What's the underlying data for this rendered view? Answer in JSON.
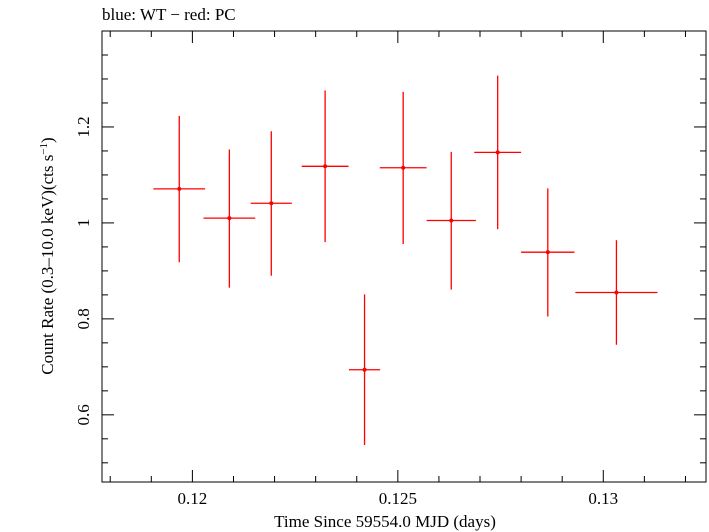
{
  "chart_data": {
    "type": "scatter",
    "title": "blue: WT − red: PC",
    "xlabel": "Time Since 59554.0 MJD (days)",
    "ylabel_main": "Count Rate (0.3–10.0 keV)(cts s",
    "ylabel_sup": "−1",
    "ylabel_tail": ")",
    "xlim": [
      0.1178,
      0.1325
    ],
    "ylim": [
      0.46,
      1.4
    ],
    "x_ticks": [
      0.12,
      0.125,
      0.13
    ],
    "x_tick_labels": [
      "0.12",
      "0.125",
      "0.13"
    ],
    "y_ticks": [
      0.6,
      0.8,
      1.0,
      1.2
    ],
    "y_tick_labels": [
      "0.6",
      "0.8",
      "1",
      "1.2"
    ],
    "x_minor_step": 0.001,
    "y_minor_step": 0.05,
    "grid": false,
    "series": [
      {
        "color": "#ff0000",
        "points": [
          {
            "x": 0.11968,
            "y": 1.071,
            "xerr": 0.00063,
            "yerr_low": 0.153,
            "yerr_high": 0.152
          },
          {
            "x": 0.1209,
            "y": 1.01,
            "xerr": 0.00063,
            "yerr_low": 0.145,
            "yerr_high": 0.143
          },
          {
            "x": 0.12192,
            "y": 1.041,
            "xerr": 0.0005,
            "yerr_low": 0.151,
            "yerr_high": 0.15
          },
          {
            "x": 0.12323,
            "y": 1.118,
            "xerr": 0.00057,
            "yerr_low": 0.158,
            "yerr_high": 0.158
          },
          {
            "x": 0.12419,
            "y": 0.694,
            "xerr": 0.00038,
            "yerr_low": 0.157,
            "yerr_high": 0.157
          },
          {
            "x": 0.12513,
            "y": 1.115,
            "xerr": 0.00057,
            "yerr_low": 0.159,
            "yerr_high": 0.158
          },
          {
            "x": 0.1263,
            "y": 1.005,
            "xerr": 0.0006,
            "yerr_low": 0.144,
            "yerr_high": 0.143
          },
          {
            "x": 0.12743,
            "y": 1.147,
            "xerr": 0.00057,
            "yerr_low": 0.16,
            "yerr_high": 0.16
          },
          {
            "x": 0.12865,
            "y": 0.939,
            "xerr": 0.00065,
            "yerr_low": 0.134,
            "yerr_high": 0.133
          },
          {
            "x": 0.13032,
            "y": 0.855,
            "xerr": 0.001,
            "yerr_low": 0.109,
            "yerr_high": 0.109
          }
        ]
      }
    ]
  }
}
